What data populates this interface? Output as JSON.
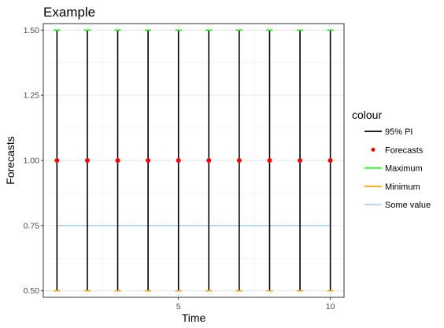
{
  "chart_data": {
    "type": "line",
    "title": "Example",
    "xlabel": "Time",
    "ylabel": "Forecasts",
    "x": [
      1,
      2,
      3,
      4,
      5,
      6,
      7,
      8,
      9,
      10
    ],
    "xlim": [
      0.55,
      10.45
    ],
    "ylim": [
      0.475,
      1.525
    ],
    "x_ticks": [
      5,
      10
    ],
    "x_tick_labels": [
      "5",
      "10"
    ],
    "y_ticks": [
      0.5,
      0.75,
      1.0,
      1.25,
      1.5
    ],
    "y_tick_labels": [
      "0.50",
      "0.75",
      "1.00",
      "1.25",
      "1.50"
    ],
    "grid": true,
    "legend": {
      "title": "colour",
      "position": "right",
      "entries": [
        {
          "label": "95% PI",
          "color": "#000000",
          "kind": "line"
        },
        {
          "label": "Forecasts",
          "color": "#ff0000",
          "kind": "point"
        },
        {
          "label": "Maximum",
          "color": "#00ff00",
          "kind": "line"
        },
        {
          "label": "Minimum",
          "color": "#ffa500",
          "kind": "line"
        },
        {
          "label": "Some value",
          "color": "#add8e6",
          "kind": "line"
        }
      ]
    },
    "series": [
      {
        "name": "95% PI",
        "kind": "errorbar",
        "color": "#000000",
        "low": [
          0.5,
          0.5,
          0.5,
          0.5,
          0.5,
          0.5,
          0.5,
          0.5,
          0.5,
          0.5
        ],
        "high": [
          1.5,
          1.5,
          1.5,
          1.5,
          1.5,
          1.5,
          1.5,
          1.5,
          1.5,
          1.5
        ]
      },
      {
        "name": "Forecasts",
        "kind": "point",
        "color": "#ff0000",
        "values": [
          1.0,
          1.0,
          1.0,
          1.0,
          1.0,
          1.0,
          1.0,
          1.0,
          1.0,
          1.0
        ]
      },
      {
        "name": "Maximum",
        "kind": "cap",
        "color": "#00ff00",
        "values": [
          1.5,
          1.5,
          1.5,
          1.5,
          1.5,
          1.5,
          1.5,
          1.5,
          1.5,
          1.5
        ]
      },
      {
        "name": "Minimum",
        "kind": "cap",
        "color": "#ffa500",
        "values": [
          0.5,
          0.5,
          0.5,
          0.5,
          0.5,
          0.5,
          0.5,
          0.5,
          0.5,
          0.5
        ]
      },
      {
        "name": "Some value",
        "kind": "hline",
        "color": "#add8e6",
        "values": [
          0.75,
          0.75,
          0.75,
          0.75,
          0.75,
          0.75,
          0.75,
          0.75,
          0.75,
          0.75
        ]
      }
    ]
  }
}
